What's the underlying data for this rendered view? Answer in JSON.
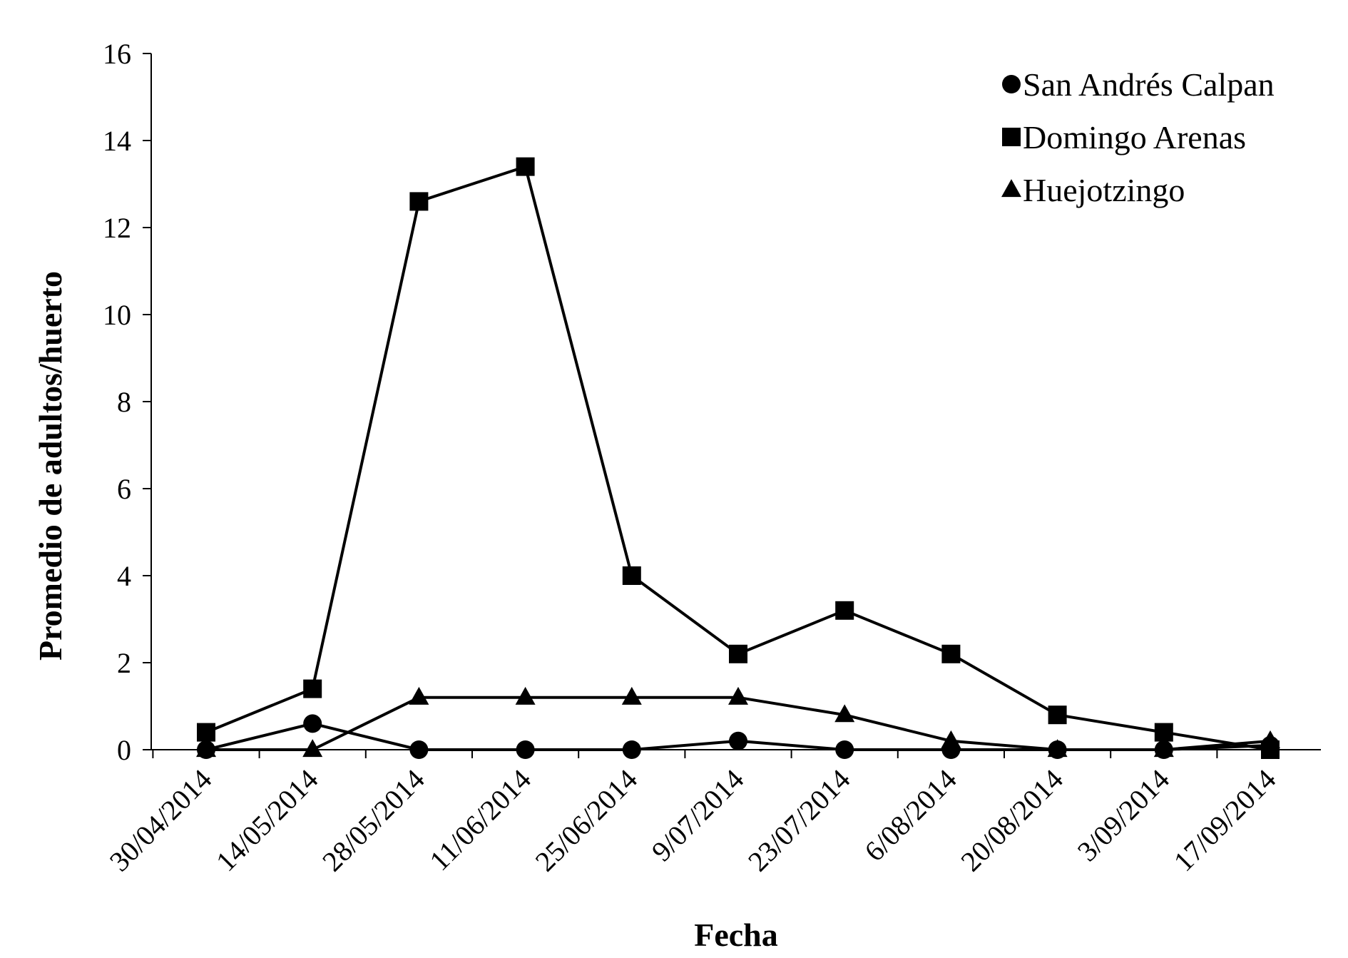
{
  "chart_data": {
    "type": "line",
    "title": "",
    "xlabel": "Fecha",
    "ylabel": "Promedio de  adultos/huerto",
    "ylim": [
      0,
      16
    ],
    "yticks": [
      0,
      2,
      4,
      6,
      8,
      10,
      12,
      14,
      16
    ],
    "grid": false,
    "legend_position": "top-right",
    "categories": [
      "30/04/2014",
      "14/05/2014",
      "28/05/2014",
      "11/06/2014",
      "25/06/2014",
      "9/07/2014",
      "23/07/2014",
      "6/08/2014",
      "20/08/2014",
      "3/09/2014",
      "17/09/2014"
    ],
    "series": [
      {
        "name": "San Andrés Calpan",
        "marker": "circle",
        "color": "#000000",
        "values": [
          0,
          0.6,
          0,
          0,
          0,
          0.2,
          0,
          0,
          0,
          0,
          0.1
        ]
      },
      {
        "name": "Domingo Arenas",
        "marker": "square",
        "color": "#000000",
        "values": [
          0.4,
          1.4,
          12.6,
          13.4,
          4.0,
          2.2,
          3.2,
          2.2,
          0.8,
          0.4,
          0
        ]
      },
      {
        "name": "Huejotzingo",
        "marker": "triangle",
        "color": "#000000",
        "values": [
          0,
          0,
          1.2,
          1.2,
          1.2,
          1.2,
          0.8,
          0.2,
          0,
          0,
          0.2
        ]
      }
    ]
  }
}
